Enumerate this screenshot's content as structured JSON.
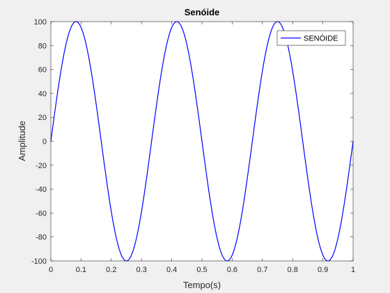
{
  "chart_data": {
    "type": "line",
    "title": "Senóide",
    "xlabel": "Tempo(s)",
    "ylabel": "Amplitude",
    "xlim": [
      0,
      1
    ],
    "ylim": [
      -100,
      100
    ],
    "x_ticks": [
      "0",
      "0.1",
      "0.2",
      "0.3",
      "0.4",
      "0.5",
      "0.6",
      "0.7",
      "0.8",
      "0.9",
      "1"
    ],
    "y_ticks": [
      "100",
      "80",
      "60",
      "40",
      "20",
      "0",
      "-20",
      "-40",
      "-60",
      "-80",
      "-100"
    ],
    "grid": false,
    "legend_position": "top-right",
    "series": [
      {
        "name": "SENÓIDE",
        "color": "#0000ff",
        "function": "100*sin(2*pi*3*t)",
        "amplitude": 100,
        "frequency_hz": 3,
        "x": [
          0,
          0.0833,
          0.1667,
          0.25,
          0.3333,
          0.4167,
          0.5,
          0.5833,
          0.6667,
          0.75,
          0.8333,
          0.9167,
          1
        ],
        "values": [
          0,
          100,
          0,
          -100,
          0,
          100,
          0,
          -100,
          0,
          100,
          0,
          -100,
          0
        ]
      }
    ]
  }
}
